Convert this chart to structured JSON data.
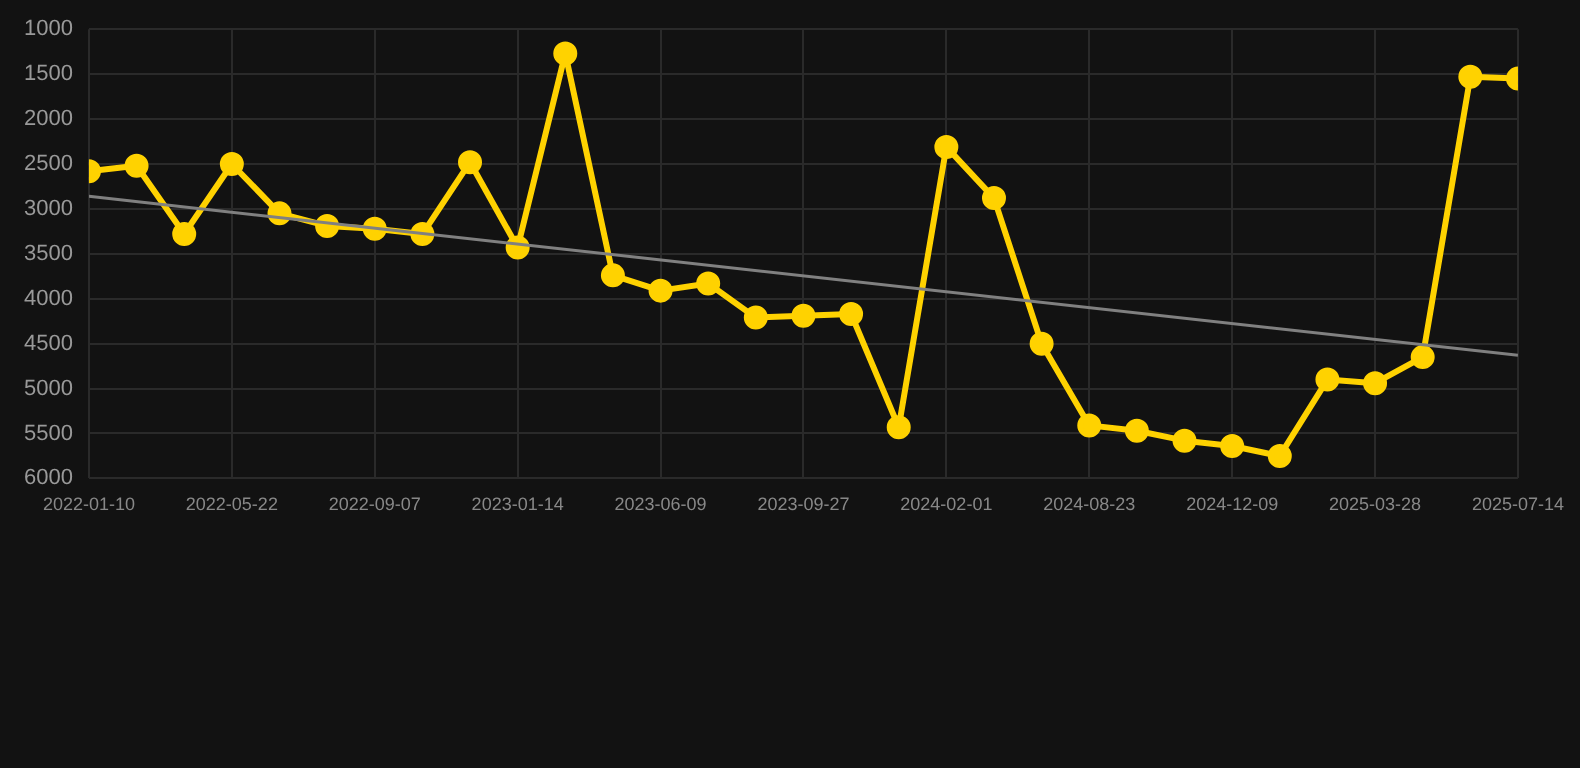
{
  "chart_data": {
    "type": "line",
    "categories": [
      "2022-01-10",
      null,
      null,
      "2022-05-22",
      null,
      null,
      "2022-09-07",
      null,
      null,
      "2023-01-14",
      null,
      null,
      "2023-06-09",
      null,
      null,
      "2023-09-27",
      null,
      null,
      "2024-02-01",
      null,
      null,
      "2024-08-23",
      null,
      null,
      "2024-12-09",
      null,
      null,
      "2025-03-28",
      null,
      null,
      "2025-07-14"
    ],
    "series": [
      {
        "color": "#ffd200",
        "marker": "circle",
        "values": [
          2580,
          2520,
          3280,
          2500,
          3050,
          3190,
          3220,
          3280,
          2480,
          3430,
          1270,
          3740,
          3910,
          3830,
          4210,
          4190,
          4170,
          5430,
          2310,
          2880,
          4500,
          5410,
          5470,
          5580,
          5640,
          5750,
          4900,
          4940,
          4650,
          1530,
          1550
        ]
      },
      {
        "type": "line",
        "color": "#808080",
        "marker": "none",
        "values": [
          2860,
          null,
          null,
          null,
          null,
          null,
          null,
          null,
          null,
          null,
          null,
          null,
          null,
          null,
          null,
          null,
          null,
          null,
          null,
          null,
          null,
          null,
          null,
          null,
          null,
          null,
          null,
          null,
          null,
          null,
          4630
        ]
      }
    ],
    "ylim": [
      6000,
      1000
    ],
    "yticks": [
      1000,
      1500,
      2000,
      2500,
      3000,
      3500,
      4000,
      4500,
      5000,
      5500,
      6000
    ],
    "grid": true
  }
}
